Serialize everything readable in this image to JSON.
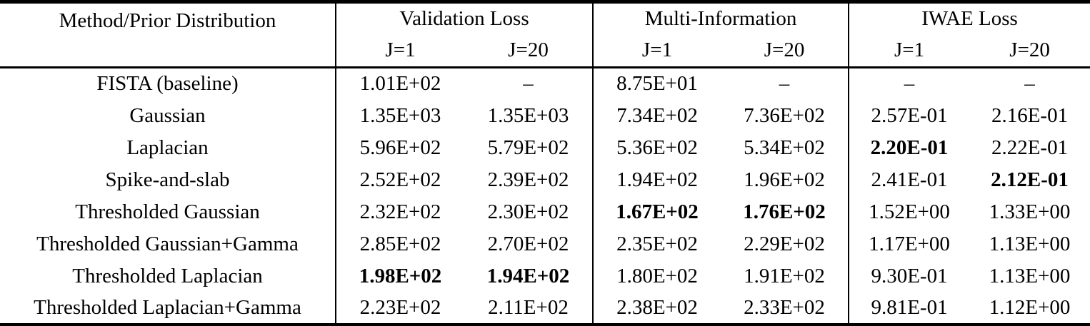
{
  "table": {
    "method_header": "Method/Prior Distribution",
    "groups": [
      {
        "label": "Validation Loss",
        "sub": [
          "J=1",
          "J=20"
        ]
      },
      {
        "label": "Multi-Information",
        "sub": [
          "J=1",
          "J=20"
        ]
      },
      {
        "label": "IWAE Loss",
        "sub": [
          "J=1",
          "J=20"
        ]
      }
    ],
    "text_color": "#000000",
    "background_color": "#ffffff",
    "rows": [
      {
        "method": "FISTA (baseline)",
        "values": [
          {
            "text": "1.01E+02",
            "bold": false
          },
          {
            "text": "–",
            "bold": false
          },
          {
            "text": "8.75E+01",
            "bold": false
          },
          {
            "text": "–",
            "bold": false
          },
          {
            "text": "–",
            "bold": false
          },
          {
            "text": "–",
            "bold": false
          }
        ]
      },
      {
        "method": "Gaussian",
        "values": [
          {
            "text": "1.35E+03",
            "bold": false
          },
          {
            "text": "1.35E+03",
            "bold": false
          },
          {
            "text": "7.34E+02",
            "bold": false
          },
          {
            "text": "7.36E+02",
            "bold": false
          },
          {
            "text": "2.57E-01",
            "bold": false
          },
          {
            "text": "2.16E-01",
            "bold": false
          }
        ]
      },
      {
        "method": "Laplacian",
        "values": [
          {
            "text": "5.96E+02",
            "bold": false
          },
          {
            "text": "5.79E+02",
            "bold": false
          },
          {
            "text": "5.36E+02",
            "bold": false
          },
          {
            "text": "5.34E+02",
            "bold": false
          },
          {
            "text": "2.20E-01",
            "bold": true
          },
          {
            "text": "2.22E-01",
            "bold": false
          }
        ]
      },
      {
        "method": "Spike-and-slab",
        "values": [
          {
            "text": "2.52E+02",
            "bold": false
          },
          {
            "text": "2.39E+02",
            "bold": false
          },
          {
            "text": "1.94E+02",
            "bold": false
          },
          {
            "text": "1.96E+02",
            "bold": false
          },
          {
            "text": "2.41E-01",
            "bold": false
          },
          {
            "text": "2.12E-01",
            "bold": true
          }
        ]
      },
      {
        "method": "Thresholded Gaussian",
        "values": [
          {
            "text": "2.32E+02",
            "bold": false
          },
          {
            "text": "2.30E+02",
            "bold": false
          },
          {
            "text": "1.67E+02",
            "bold": true
          },
          {
            "text": "1.76E+02",
            "bold": true
          },
          {
            "text": "1.52E+00",
            "bold": false
          },
          {
            "text": "1.33E+00",
            "bold": false
          }
        ]
      },
      {
        "method": "Thresholded Gaussian+Gamma",
        "values": [
          {
            "text": "2.85E+02",
            "bold": false
          },
          {
            "text": "2.70E+02",
            "bold": false
          },
          {
            "text": "2.35E+02",
            "bold": false
          },
          {
            "text": "2.29E+02",
            "bold": false
          },
          {
            "text": "1.17E+00",
            "bold": false
          },
          {
            "text": "1.13E+00",
            "bold": false
          }
        ]
      },
      {
        "method": "Thresholded Laplacian",
        "values": [
          {
            "text": "1.98E+02",
            "bold": true
          },
          {
            "text": "1.94E+02",
            "bold": true
          },
          {
            "text": "1.80E+02",
            "bold": false
          },
          {
            "text": "1.91E+02",
            "bold": false
          },
          {
            "text": "9.30E-01",
            "bold": false
          },
          {
            "text": "1.13E+00",
            "bold": false
          }
        ]
      },
      {
        "method": "Thresholded Laplacian+Gamma",
        "values": [
          {
            "text": "2.23E+02",
            "bold": false
          },
          {
            "text": "2.11E+02",
            "bold": false
          },
          {
            "text": "2.38E+02",
            "bold": false
          },
          {
            "text": "2.33E+02",
            "bold": false
          },
          {
            "text": "9.81E-01",
            "bold": false
          },
          {
            "text": "1.12E+00",
            "bold": false
          }
        ]
      }
    ]
  }
}
